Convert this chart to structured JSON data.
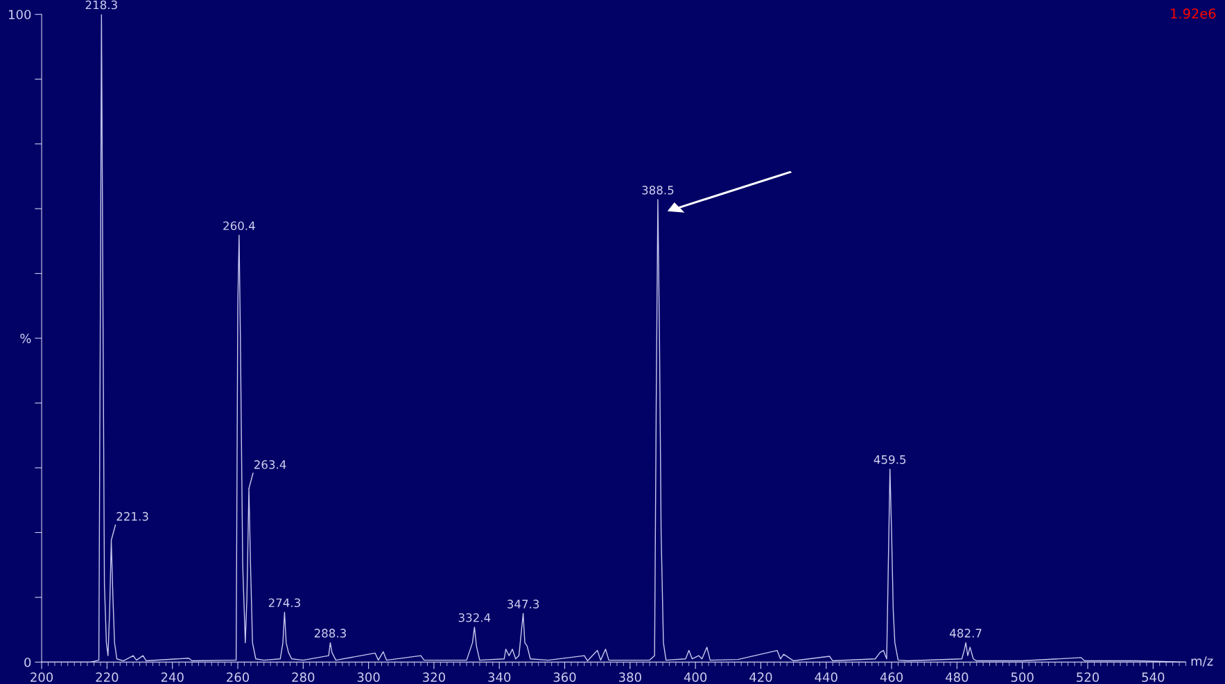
{
  "chart_data": {
    "type": "line",
    "xlabel": "m/z",
    "x": [
      200,
      215,
      217.5,
      218.0,
      218.3,
      218.7,
      219.2,
      219.8,
      220.3,
      220.8,
      221.3,
      221.8,
      222.3,
      223,
      225,
      228,
      229,
      231,
      232,
      245,
      246,
      258,
      259.5,
      260.0,
      260.4,
      260.8,
      261.5,
      262.3,
      262.8,
      263.4,
      263.9,
      264.5,
      265.5,
      268,
      273,
      273.8,
      274.3,
      274.8,
      275.5,
      276.5,
      280,
      287.8,
      288.3,
      288.8,
      290,
      302,
      303,
      304.5,
      305.5,
      316,
      317,
      330,
      331.8,
      332.4,
      333,
      334,
      341.5,
      342,
      343,
      344,
      345,
      346,
      346.8,
      347.3,
      347.8,
      348.5,
      349.5,
      355,
      366,
      367,
      370,
      371,
      372.5,
      373.5,
      386,
      387.5,
      388.0,
      388.5,
      389,
      389.5,
      390.2,
      391,
      397,
      398,
      399,
      401,
      402,
      403.5,
      404.5,
      413,
      425,
      426,
      427,
      430,
      441,
      442,
      455,
      456.5,
      457.5,
      458.5,
      459.0,
      459.5,
      460,
      460.5,
      461,
      462,
      465,
      481.5,
      482.3,
      482.7,
      483.3,
      484,
      485,
      486,
      500,
      518,
      519,
      535,
      550
    ],
    "series": [
      {
        "color": "#c8c8f0",
        "values": [
          0,
          0,
          0.3,
          60,
          100,
          60,
          12,
          3,
          1,
          8,
          18.8,
          10,
          3,
          0.5,
          0.2,
          1,
          0.3,
          1,
          0.2,
          0.6,
          0.2,
          0.3,
          0.3,
          55,
          65.9,
          50,
          15,
          3,
          10,
          26.8,
          15,
          3,
          0.5,
          0.3,
          0.5,
          3,
          7.7,
          3,
          1.5,
          0.5,
          0.3,
          1,
          3.0,
          1.5,
          0.3,
          1.4,
          0.3,
          1.6,
          0.3,
          1,
          0.3,
          0.3,
          3,
          5.4,
          2.5,
          0.3,
          0.5,
          2,
          1,
          2,
          0.5,
          1,
          5,
          7.5,
          3,
          2.5,
          0.5,
          0.3,
          1,
          0.2,
          1.8,
          0.3,
          2,
          0.3,
          0.3,
          1,
          40,
          71.4,
          50,
          20,
          3,
          0.3,
          0.5,
          1.8,
          0.5,
          1,
          0.5,
          2.3,
          0.3,
          0.4,
          1.8,
          0.5,
          1.2,
          0.2,
          0.9,
          0.2,
          0.5,
          1.5,
          1.8,
          0.5,
          15,
          29.8,
          20,
          8,
          3,
          0.3,
          0.2,
          0.5,
          2,
          3.0,
          1,
          2.3,
          0.5,
          0.2,
          0.2,
          0.7,
          0.2,
          0.2,
          0
        ]
      }
    ],
    "xlim": [
      200,
      550
    ],
    "xticks": [
      200,
      220,
      240,
      260,
      280,
      300,
      320,
      340,
      360,
      380,
      400,
      420,
      440,
      460,
      480,
      500,
      520,
      540
    ],
    "ylim": [
      0,
      100
    ],
    "yticks": [
      0,
      {
        "value": 10,
        "label": null
      },
      {
        "value": 20,
        "label": null
      },
      {
        "value": 30,
        "label": null
      },
      {
        "value": 40,
        "label": null
      },
      {
        "value": 50,
        "label": "%"
      },
      {
        "value": 60,
        "label": null
      },
      {
        "value": 70,
        "label": null
      },
      {
        "value": 80,
        "label": null
      },
      {
        "value": 90,
        "label": null
      },
      100
    ],
    "annotations": [
      {
        "text": "218.3",
        "x": 218.3,
        "y": 100
      },
      {
        "text": "221.3",
        "x": 221.3,
        "y": 18.8
      },
      {
        "text": "260.4",
        "x": 260.4,
        "y": 65.9
      },
      {
        "text": "263.4",
        "x": 263.4,
        "y": 26.8
      },
      {
        "text": "274.3",
        "x": 274.3,
        "y": 7.7
      },
      {
        "text": "288.3",
        "x": 288.3,
        "y": 3.0
      },
      {
        "text": "332.4",
        "x": 332.4,
        "y": 5.4
      },
      {
        "text": "347.3",
        "x": 347.3,
        "y": 7.5
      },
      {
        "text": "388.5",
        "x": 388.5,
        "y": 71.4
      },
      {
        "text": "459.5",
        "x": 459.5,
        "y": 29.8
      },
      {
        "text": "482.7",
        "x": 482.7,
        "y": 3.0
      },
      "1.92e6"
    ],
    "grid": false,
    "legend": false
  }
}
